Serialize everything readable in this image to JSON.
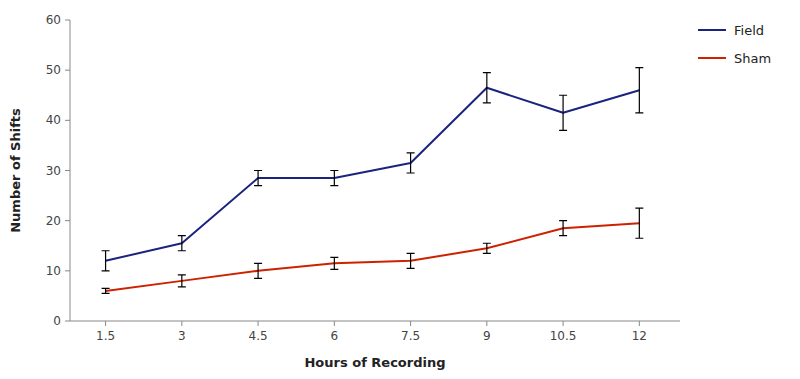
{
  "chart_data": {
    "type": "line",
    "xlabel": "Hours of Recording",
    "ylabel": "Number of Shifts",
    "x": [
      1.5,
      3,
      4.5,
      6,
      7.5,
      9,
      10.5,
      12
    ],
    "series": [
      {
        "name": "Field",
        "color": "#1A237E",
        "values": [
          12.0,
          15.5,
          28.5,
          28.5,
          31.5,
          46.5,
          41.5,
          46.0
        ],
        "errors": [
          2.0,
          1.5,
          1.5,
          1.5,
          2.0,
          3.0,
          3.5,
          4.5
        ]
      },
      {
        "name": "Sham",
        "color": "#CC2200",
        "values": [
          6.0,
          8.0,
          10.0,
          11.5,
          12.0,
          14.5,
          18.5,
          19.5
        ],
        "errors": [
          0.5,
          1.2,
          1.5,
          1.2,
          1.5,
          1.0,
          1.5,
          3.0
        ]
      }
    ],
    "xlim": [
      0.8,
      12.8
    ],
    "ylim": [
      0,
      60
    ],
    "xticks": [
      1.5,
      3,
      4.5,
      6,
      7.5,
      9,
      10.5,
      12
    ],
    "yticks": [
      0,
      10,
      20,
      30,
      40,
      50,
      60
    ],
    "grid": false,
    "legend": "right"
  }
}
